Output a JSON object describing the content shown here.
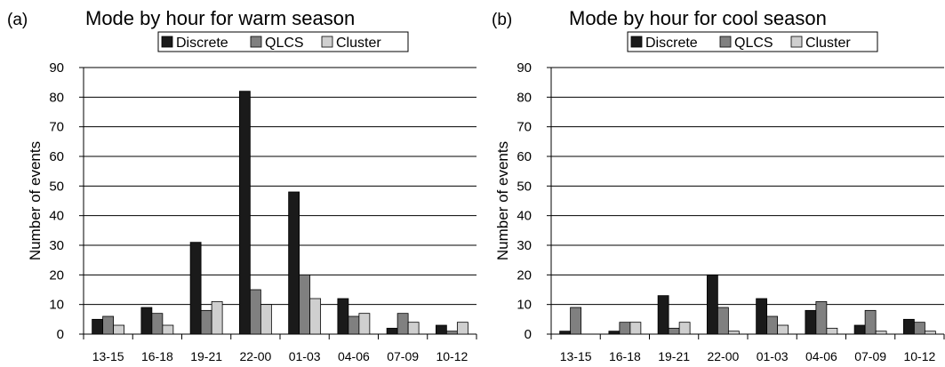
{
  "colors": {
    "Discrete": "#1a1a1a",
    "QLCS": "#808080",
    "Cluster": "#cfcfcf",
    "axis": "#000000"
  },
  "chart_data": [
    {
      "type": "bar",
      "panel_label": "(a)",
      "title": "Mode by hour for warm season",
      "xlabel": "",
      "ylabel": "Number of events",
      "categories": [
        "13-15",
        "16-18",
        "19-21",
        "22-00",
        "01-03",
        "04-06",
        "07-09",
        "10-12"
      ],
      "series": [
        {
          "name": "Discrete",
          "values": [
            5,
            9,
            31,
            82,
            48,
            12,
            2,
            3
          ]
        },
        {
          "name": "QLCS",
          "values": [
            6,
            7,
            8,
            15,
            20,
            6,
            7,
            1
          ]
        },
        {
          "name": "Cluster",
          "values": [
            3,
            3,
            11,
            10,
            12,
            7,
            4,
            4
          ]
        }
      ],
      "ylim": [
        0,
        90
      ],
      "yticks": [
        0,
        10,
        20,
        30,
        40,
        50,
        60,
        70,
        80,
        90
      ],
      "grid": true,
      "legend": "top-center"
    },
    {
      "type": "bar",
      "panel_label": "(b)",
      "title": "Mode by hour for cool season",
      "xlabel": "",
      "ylabel": "Number of events",
      "categories": [
        "13-15",
        "16-18",
        "19-21",
        "22-00",
        "01-03",
        "04-06",
        "07-09",
        "10-12"
      ],
      "series": [
        {
          "name": "Discrete",
          "values": [
            1,
            1,
            13,
            20,
            12,
            8,
            3,
            5
          ]
        },
        {
          "name": "QLCS",
          "values": [
            9,
            4,
            2,
            9,
            6,
            11,
            8,
            4
          ]
        },
        {
          "name": "Cluster",
          "values": [
            0,
            4,
            4,
            1,
            3,
            2,
            1,
            1
          ]
        }
      ],
      "ylim": [
        0,
        90
      ],
      "yticks": [
        0,
        10,
        20,
        30,
        40,
        50,
        60,
        70,
        80,
        90
      ],
      "grid": true,
      "legend": "top-center"
    }
  ]
}
